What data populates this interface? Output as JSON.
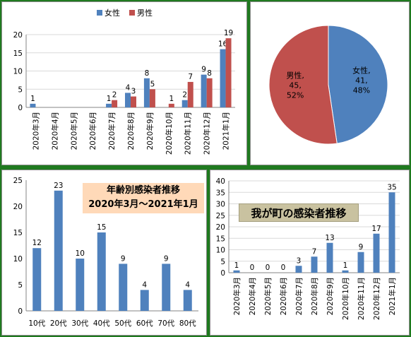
{
  "colors": {
    "female": "#4f81bd",
    "male": "#c0504d",
    "bar": "#4f81bd",
    "grid": "#d9d9d9",
    "axis": "#868686",
    "title3_bg": "#ffd9b8",
    "title4_bg": "#c9c2a0"
  },
  "chart_data": [
    {
      "id": "gender-monthly",
      "type": "bar",
      "categories": [
        "2020年3月",
        "2020年4月",
        "2020年5月",
        "2020年6月",
        "2020年7月",
        "2020年8月",
        "2020年9月",
        "2020年10月",
        "2020年11月",
        "2020年12月",
        "2021年1月"
      ],
      "series": [
        {
          "name": "女性",
          "color": "#4f81bd",
          "values": [
            1,
            0,
            0,
            0,
            1,
            4,
            8,
            0,
            2,
            9,
            16
          ],
          "labels": [
            "1",
            "",
            "",
            "",
            "1",
            "4",
            "8",
            "",
            "2",
            "9",
            "16"
          ]
        },
        {
          "name": "男性",
          "color": "#c0504d",
          "values": [
            0,
            0,
            0,
            0,
            2,
            3,
            5,
            1,
            7,
            8,
            19
          ],
          "labels": [
            "",
            "",
            "",
            "",
            "2",
            "3",
            "5",
            "1",
            "7",
            "8",
            "19"
          ]
        }
      ],
      "ylim": [
        0,
        20
      ],
      "yticks": [
        "0",
        "5",
        "10",
        "15",
        "20"
      ],
      "grid": true,
      "legend": "top"
    },
    {
      "id": "gender-pie",
      "type": "pie",
      "slices": [
        {
          "label": "女性",
          "value": 41,
          "percent": "48%",
          "color": "#4f81bd",
          "text": [
            "女性,",
            "41,",
            "48%"
          ]
        },
        {
          "label": "男性",
          "value": 45,
          "percent": "52%",
          "color": "#c0504d",
          "text": [
            "男性,",
            "45,",
            "52%"
          ]
        }
      ]
    },
    {
      "id": "age-groups",
      "type": "bar",
      "title": [
        "年齢別感染者推移",
        "2020年3月～2021年1月"
      ],
      "categories": [
        "10代",
        "20代",
        "30代",
        "40代",
        "50代",
        "60代",
        "70代",
        "80代"
      ],
      "values": [
        12,
        23,
        10,
        15,
        9,
        4,
        9,
        4
      ],
      "labels": [
        "12",
        "23",
        "10",
        "15",
        "9",
        "4",
        "9",
        "4"
      ],
      "ylim": [
        0,
        25
      ],
      "yticks": [
        "0",
        "5",
        "10",
        "15",
        "20",
        "25"
      ],
      "grid": false
    },
    {
      "id": "town-monthly",
      "type": "bar",
      "title": "我が町の感染者推移",
      "categories": [
        "2020年3月",
        "2020年4月",
        "2020年5月",
        "2020年6月",
        "2020年7月",
        "2020年8月",
        "2020年9月",
        "2020年10月",
        "2020年11月",
        "2020年12月",
        "2021年1月"
      ],
      "values": [
        1,
        0,
        0,
        0,
        3,
        7,
        13,
        1,
        9,
        17,
        35
      ],
      "labels": [
        "1",
        "0",
        "0",
        "0",
        "3",
        "7",
        "13",
        "1",
        "9",
        "17",
        "35"
      ],
      "ylim": [
        0,
        40
      ],
      "yticks": [
        "0",
        "5",
        "10",
        "15",
        "20",
        "25",
        "30",
        "35",
        "40"
      ],
      "grid": true
    }
  ]
}
